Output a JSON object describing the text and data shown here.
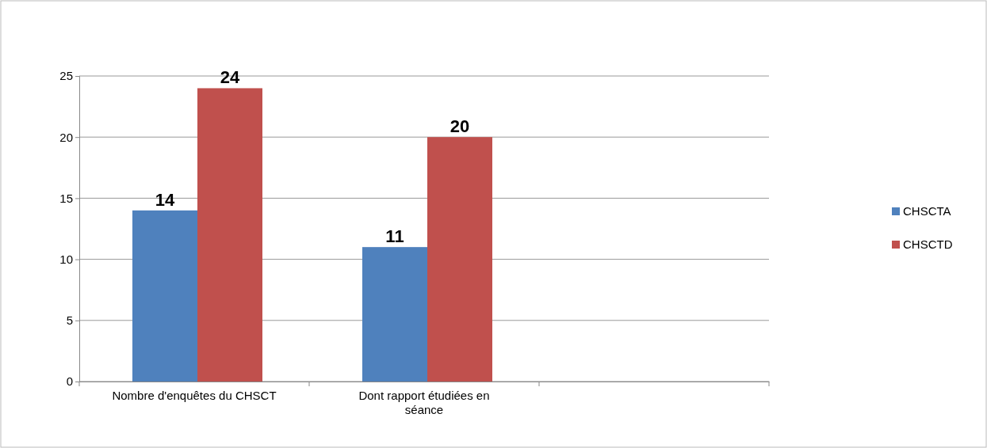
{
  "chart_data": {
    "type": "bar",
    "categories": [
      "Nombre d'enquêtes du CHSCT",
      "Dont rapport étudiées en séance",
      null
    ],
    "series": [
      {
        "name": "CHSCTA",
        "color": "#4f81bd",
        "values": [
          14,
          11,
          null
        ]
      },
      {
        "name": "CHSCTD",
        "color": "#c0504d",
        "values": [
          24,
          20,
          null
        ]
      }
    ],
    "ylim": [
      0,
      25
    ],
    "yticks": [
      0,
      5,
      10,
      15,
      20,
      25
    ],
    "grid": "y",
    "legend": "right",
    "data_labels": true
  }
}
